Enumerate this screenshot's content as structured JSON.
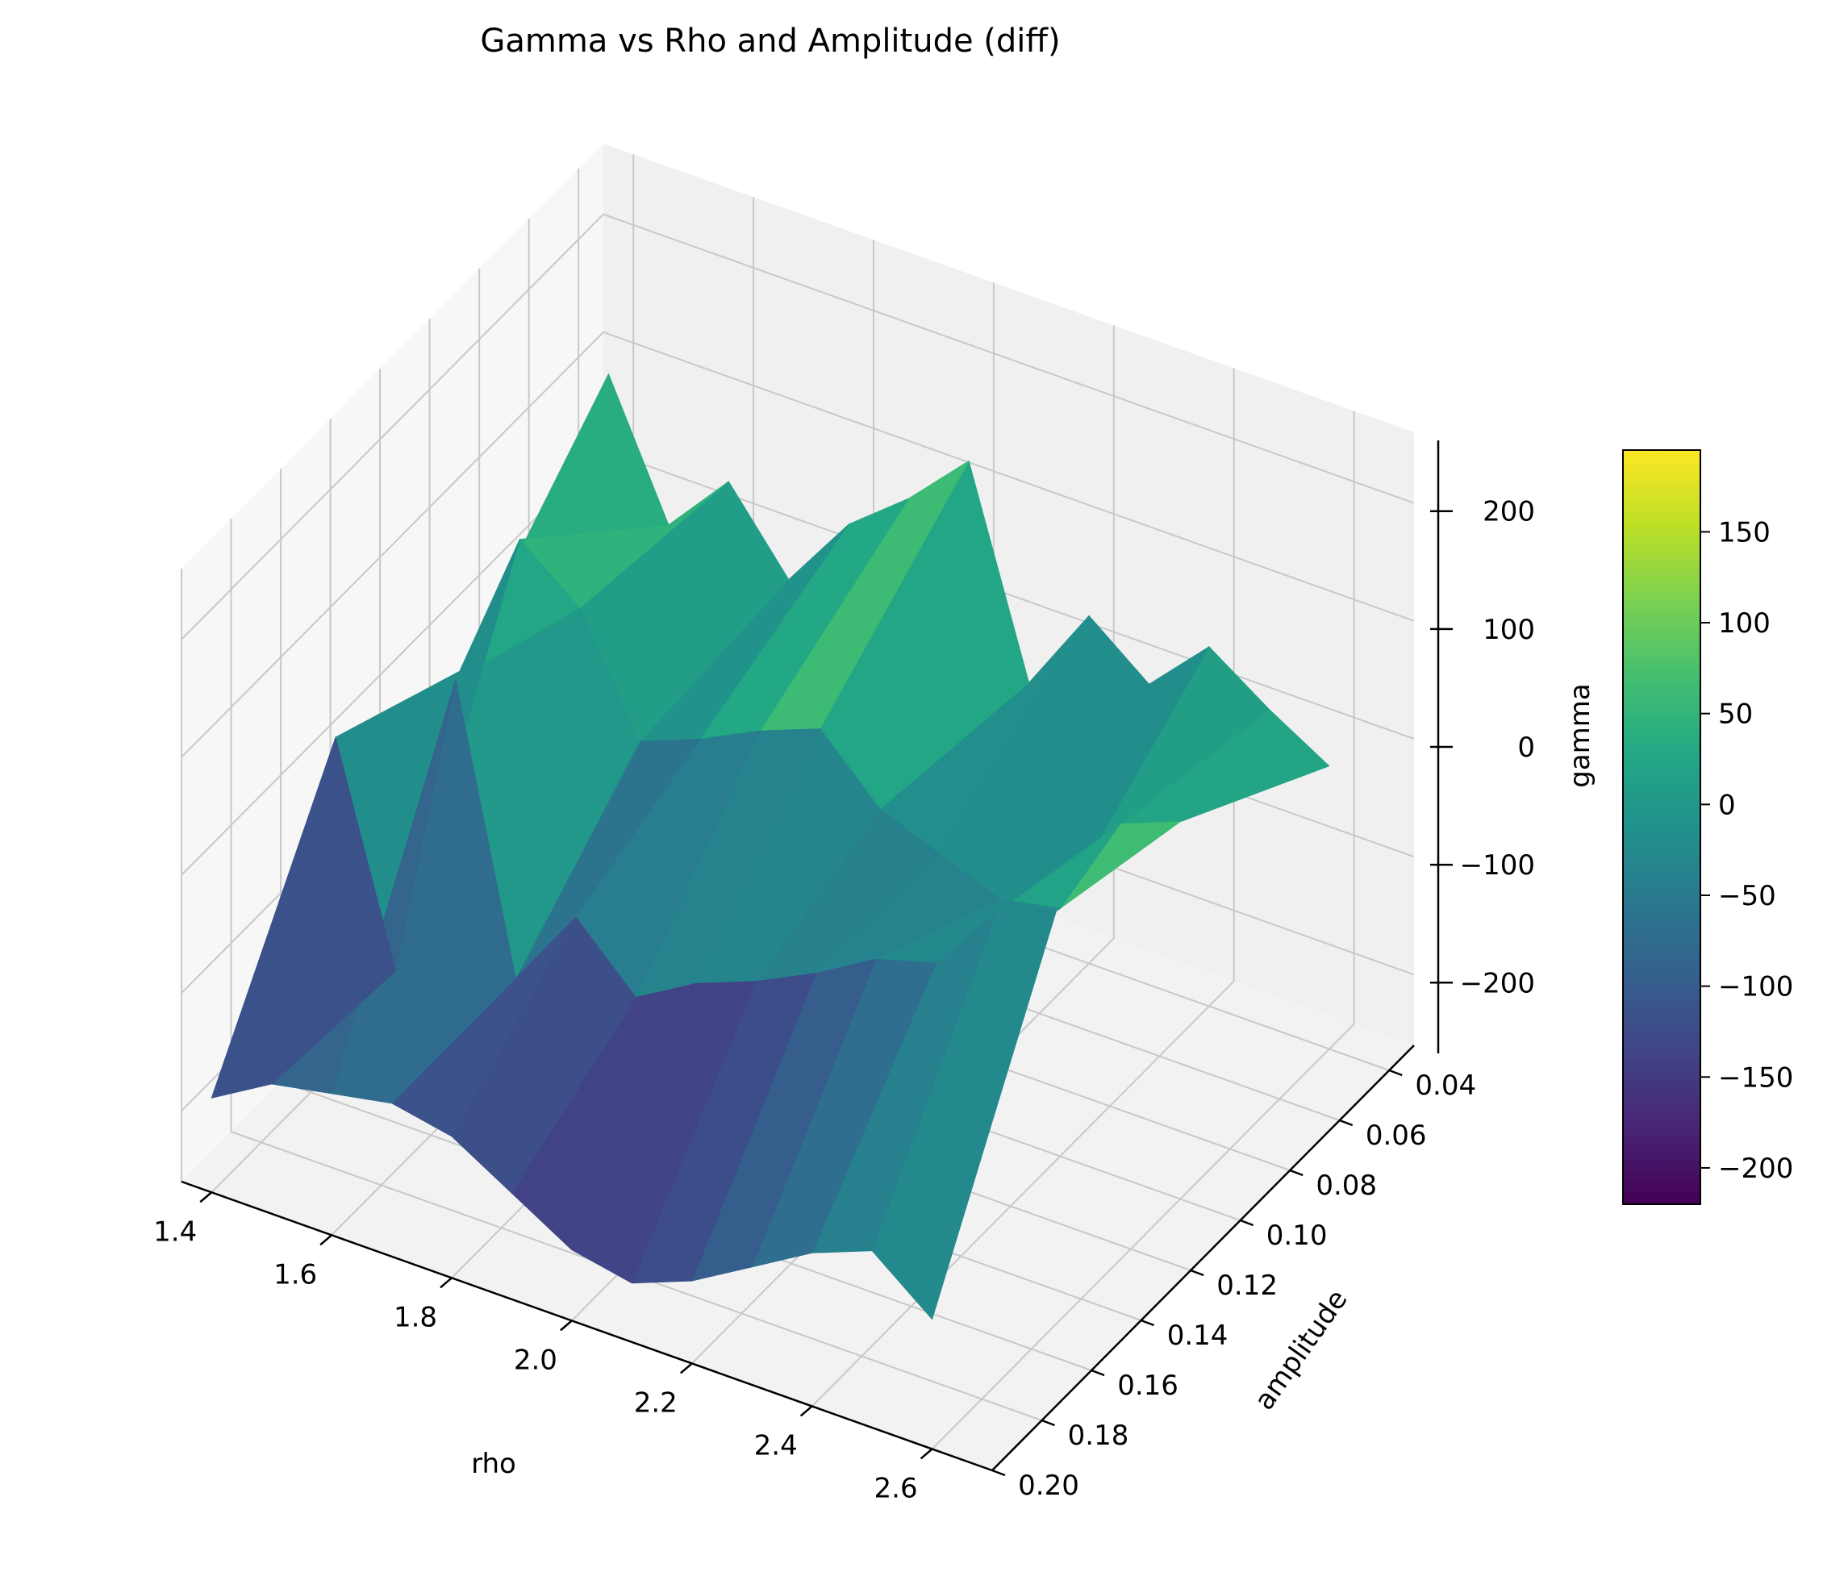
{
  "chart_data": {
    "type": "surface3d",
    "title": "Gamma vs Rho and Amplitude (diff)",
    "xlabel": "rho",
    "ylabel": "amplitude",
    "zlabel": "gamma",
    "xlim": [
      1.35,
      2.7
    ],
    "ylim": [
      0.03,
      0.2
    ],
    "zlim": [
      -260,
      260
    ],
    "x_ticks": [
      "1.4",
      "1.6",
      "1.8",
      "2.0",
      "2.2",
      "2.4",
      "2.6"
    ],
    "x_tick_values": [
      1.4,
      1.6,
      1.8,
      2.0,
      2.2,
      2.4,
      2.6
    ],
    "y_ticks": [
      "0.04",
      "0.06",
      "0.08",
      "0.10",
      "0.12",
      "0.14",
      "0.16",
      "0.18",
      "0.20"
    ],
    "y_tick_values": [
      0.04,
      0.06,
      0.08,
      0.1,
      0.12,
      0.14,
      0.16,
      0.18,
      0.2
    ],
    "z_ticks": [
      "200",
      "100",
      "0",
      "−100",
      "−200"
    ],
    "z_tick_values": [
      200,
      100,
      0,
      -100,
      -200
    ],
    "colormap": "viridis",
    "colorbar": {
      "min": -220,
      "max": 195,
      "ticks": [
        "150",
        "100",
        "50",
        "0",
        "−50",
        "−100",
        "−150",
        "−200"
      ],
      "tick_values": [
        150,
        100,
        50,
        0,
        -50,
        -100,
        -150,
        -200
      ]
    },
    "rho": [
      1.4,
      1.5,
      1.6,
      1.7,
      1.8,
      1.9,
      2.0,
      2.1,
      2.2,
      2.3,
      2.4,
      2.5,
      2.6
    ],
    "amplitude": [
      0.04,
      0.1,
      0.15,
      0.2
    ],
    "gamma": [
      [
        95,
        -15,
        40,
        -25,
        40,
        80,
        130,
        -40,
        35,
        -5,
        45,
        10,
        -20
      ],
      [
        -30,
        100,
        60,
        -35,
        -15,
        10,
        30,
        -20,
        -40,
        -60,
        -50,
        40,
        60
      ],
      [
        20,
        -160,
        105,
        -130,
        -60,
        -110,
        -80,
        -60,
        -35,
        -5,
        10,
        70,
        90
      ],
      [
        -180,
        -150,
        -140,
        -130,
        -140,
        -170,
        -200,
        -210,
        -190,
        -160,
        -130,
        -110,
        -150
      ]
    ],
    "grid": true
  }
}
